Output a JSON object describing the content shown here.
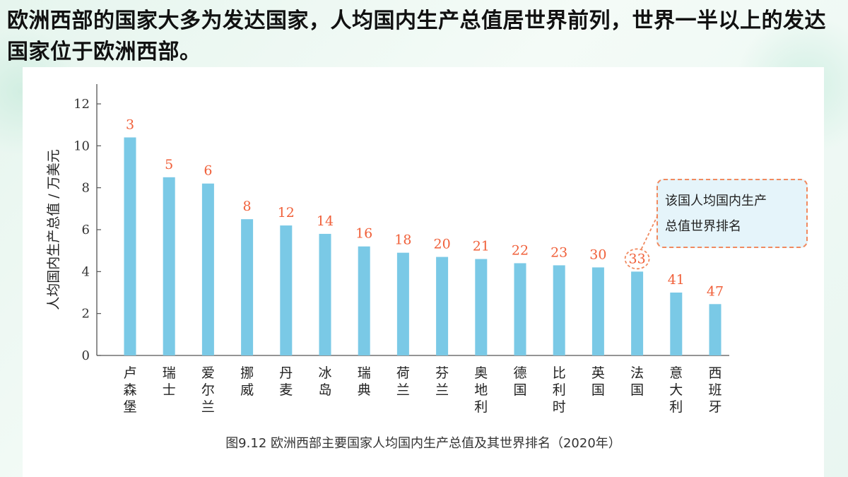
{
  "heading": "欧洲西部的国家大多为发达国家，人均国内生产总值居世界前列，世界一半以上的发达国家位于欧洲西部。",
  "callout": {
    "line1": "该国人均国内生产",
    "line2": "总值世界排名"
  },
  "colors": {
    "bar": "#7ac9e6",
    "rank": "#f0603a",
    "callout_border": "#f08a60",
    "callout_bg": "#e5f4fa"
  },
  "chart_data": {
    "type": "bar",
    "ylabel": "人均国内生产总值 / 万美元",
    "caption": "图9.12   欧洲西部主要国家人均国内生产总值及其世界排名（2020年）",
    "ylim": [
      0,
      12
    ],
    "yticks": [
      "0",
      "2",
      "4",
      "6",
      "8",
      "10",
      "12"
    ],
    "categories": [
      "卢森堡",
      "瑞士",
      "爱尔兰",
      "挪威",
      "丹麦",
      "冰岛",
      "瑞典",
      "荷兰",
      "芬兰",
      "奥地利",
      "德国",
      "比利时",
      "英国",
      "法国",
      "意大利",
      "西班牙"
    ],
    "values": [
      10.4,
      8.5,
      8.2,
      6.5,
      6.2,
      5.8,
      5.2,
      4.9,
      4.7,
      4.6,
      4.4,
      4.3,
      4.2,
      4.0,
      3.0,
      2.45
    ],
    "ranks": [
      "3",
      "5",
      "6",
      "8",
      "12",
      "14",
      "16",
      "18",
      "20",
      "21",
      "22",
      "23",
      "30",
      "33",
      "41",
      "47"
    ],
    "highlighted_rank": "33",
    "grid": false
  }
}
